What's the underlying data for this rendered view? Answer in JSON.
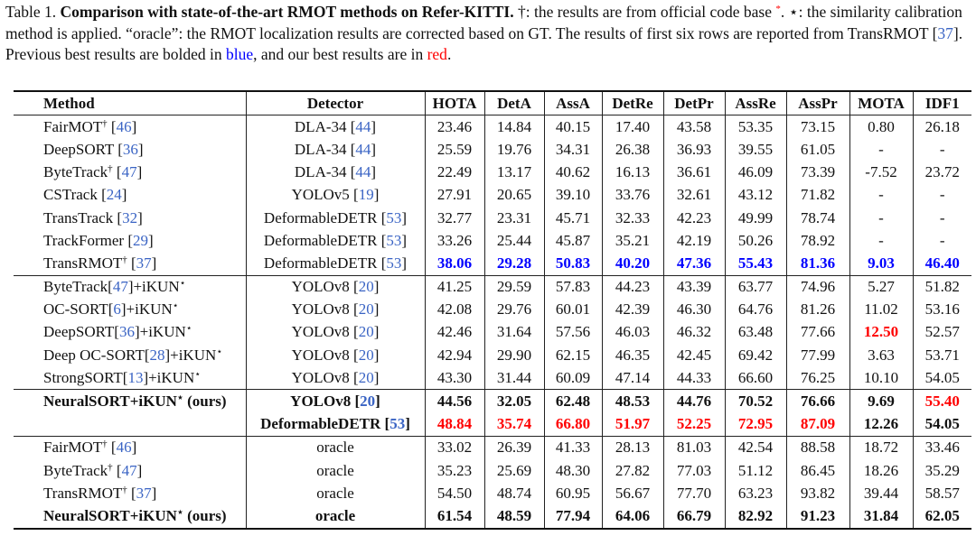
{
  "caption": [
    [
      "Table 1. ",
      ""
    ],
    [
      "Comparison with state-of-the-art RMOT methods on Refer-KITTI.",
      "bold"
    ],
    [
      " †: the results are from official code base ",
      ""
    ],
    [
      "*",
      "sup red"
    ],
    [
      ". ⋆: the similarity calibration method is applied. “oracle”: the RMOT localization results are corrected based on GT. The results of first six rows are reported from TransRMOT [",
      ""
    ],
    [
      "37",
      "cite"
    ],
    [
      "]. Previous best results are bolded in ",
      ""
    ],
    [
      "blue",
      "blue"
    ],
    [
      ", and our best results are in ",
      ""
    ],
    [
      "red",
      "red"
    ],
    [
      ".",
      ""
    ]
  ],
  "table": {
    "header": [
      "Method",
      "Detector",
      "HOTA",
      "DetA",
      "AssA",
      "DetRe",
      "DetPr",
      "AssRe",
      "AssPr",
      "MOTA",
      "IDF1"
    ],
    "groups": [
      {
        "rows": [
          {
            "bold": false,
            "method": [
              [
                "FairMOT",
                ""
              ],
              [
                "†",
                "sup"
              ],
              [
                " [",
                ""
              ],
              [
                "46",
                "cite"
              ],
              [
                "]",
                ""
              ]
            ],
            "detector": [
              [
                "DLA-34 [",
                ""
              ],
              [
                "44",
                "cite"
              ],
              [
                "]",
                ""
              ]
            ],
            "metrics": [
              "23.46",
              "14.84",
              "40.15",
              "17.40",
              "43.58",
              "53.35",
              "73.15",
              "0.80",
              "26.18"
            ]
          },
          {
            "bold": false,
            "method": [
              [
                "DeepSORT [",
                ""
              ],
              [
                "36",
                "cite"
              ],
              [
                "]",
                ""
              ]
            ],
            "detector": [
              [
                "DLA-34 [",
                ""
              ],
              [
                "44",
                "cite"
              ],
              [
                "]",
                ""
              ]
            ],
            "metrics": [
              "25.59",
              "19.76",
              "34.31",
              "26.38",
              "36.93",
              "39.55",
              "61.05",
              "-",
              "-"
            ]
          },
          {
            "bold": false,
            "method": [
              [
                "ByteTrack",
                ""
              ],
              [
                "†",
                "sup"
              ],
              [
                " [",
                ""
              ],
              [
                "47",
                "cite"
              ],
              [
                "]",
                ""
              ]
            ],
            "detector": [
              [
                "DLA-34 [",
                ""
              ],
              [
                "44",
                "cite"
              ],
              [
                "]",
                ""
              ]
            ],
            "metrics": [
              "22.49",
              "13.17",
              "40.62",
              "16.13",
              "36.61",
              "46.09",
              "73.39",
              "-7.52",
              "23.72"
            ]
          },
          {
            "bold": false,
            "method": [
              [
                "CSTrack [",
                ""
              ],
              [
                "24",
                "cite"
              ],
              [
                "]",
                ""
              ]
            ],
            "detector": [
              [
                "YOLOv5 [",
                ""
              ],
              [
                "19",
                "cite"
              ],
              [
                "]",
                ""
              ]
            ],
            "metrics": [
              "27.91",
              "20.65",
              "39.10",
              "33.76",
              "32.61",
              "43.12",
              "71.82",
              "-",
              "-"
            ]
          },
          {
            "bold": false,
            "method": [
              [
                "TransTrack [",
                ""
              ],
              [
                "32",
                "cite"
              ],
              [
                "]",
                ""
              ]
            ],
            "detector": [
              [
                "DeformableDETR [",
                ""
              ],
              [
                "53",
                "cite"
              ],
              [
                "]",
                ""
              ]
            ],
            "metrics": [
              "32.77",
              "23.31",
              "45.71",
              "32.33",
              "42.23",
              "49.99",
              "78.74",
              "-",
              "-"
            ]
          },
          {
            "bold": false,
            "method": [
              [
                "TrackFormer [",
                ""
              ],
              [
                "29",
                "cite"
              ],
              [
                "]",
                ""
              ]
            ],
            "detector": [
              [
                "DeformableDETR [",
                ""
              ],
              [
                "53",
                "cite"
              ],
              [
                "]",
                ""
              ]
            ],
            "metrics": [
              "33.26",
              "25.44",
              "45.87",
              "35.21",
              "42.19",
              "50.26",
              "78.92",
              "-",
              "-"
            ]
          },
          {
            "bold": false,
            "method": [
              [
                "TransRMOT",
                ""
              ],
              [
                "†",
                "sup"
              ],
              [
                " [",
                ""
              ],
              [
                "37",
                "cite"
              ],
              [
                "]",
                ""
              ]
            ],
            "detector": [
              [
                "DeformableDETR [",
                ""
              ],
              [
                "53",
                "cite"
              ],
              [
                "]",
                ""
              ]
            ],
            "metrics": [
              {
                "text": "38.06",
                "color": "blue"
              },
              {
                "text": "29.28",
                "color": "blue"
              },
              {
                "text": "50.83",
                "color": "blue"
              },
              {
                "text": "40.20",
                "color": "blue"
              },
              {
                "text": "47.36",
                "color": "blue"
              },
              {
                "text": "55.43",
                "color": "blue"
              },
              {
                "text": "81.36",
                "color": "blue"
              },
              {
                "text": "9.03",
                "color": "blue"
              },
              {
                "text": "46.40",
                "color": "blue"
              }
            ]
          }
        ]
      },
      {
        "rows": [
          {
            "bold": false,
            "method": [
              [
                "ByteTrack[",
                ""
              ],
              [
                "47",
                "cite"
              ],
              [
                "]+iKUN",
                ""
              ],
              [
                "⋆",
                "sup"
              ]
            ],
            "detector": [
              [
                "YOLOv8 [",
                ""
              ],
              [
                "20",
                "cite"
              ],
              [
                "]",
                ""
              ]
            ],
            "metrics": [
              "41.25",
              "29.59",
              "57.83",
              "44.23",
              "43.39",
              "63.77",
              "74.96",
              "5.27",
              "51.82"
            ]
          },
          {
            "bold": false,
            "method": [
              [
                "OC-SORT[",
                ""
              ],
              [
                "6",
                "cite"
              ],
              [
                "]+iKUN",
                ""
              ],
              [
                "⋆",
                "sup"
              ]
            ],
            "detector": [
              [
                "YOLOv8 [",
                ""
              ],
              [
                "20",
                "cite"
              ],
              [
                "]",
                ""
              ]
            ],
            "metrics": [
              "42.08",
              "29.76",
              "60.01",
              "42.39",
              "46.30",
              "64.76",
              "81.26",
              "11.02",
              "53.16"
            ]
          },
          {
            "bold": false,
            "method": [
              [
                "DeepSORT[",
                ""
              ],
              [
                "36",
                "cite"
              ],
              [
                "]+iKUN",
                ""
              ],
              [
                "⋆",
                "sup"
              ]
            ],
            "detector": [
              [
                "YOLOv8 [",
                ""
              ],
              [
                "20",
                "cite"
              ],
              [
                "]",
                ""
              ]
            ],
            "metrics": [
              "42.46",
              "31.64",
              "57.56",
              "46.03",
              "46.32",
              "63.48",
              "77.66",
              {
                "text": "12.50",
                "color": "red"
              },
              "52.57"
            ]
          },
          {
            "bold": false,
            "method": [
              [
                "Deep OC-SORT[",
                ""
              ],
              [
                "28",
                "cite"
              ],
              [
                "]+iKUN",
                ""
              ],
              [
                "⋆",
                "sup"
              ]
            ],
            "detector": [
              [
                "YOLOv8 [",
                ""
              ],
              [
                "20",
                "cite"
              ],
              [
                "]",
                ""
              ]
            ],
            "metrics": [
              "42.94",
              "29.90",
              "62.15",
              "46.35",
              "42.45",
              "69.42",
              "77.99",
              "3.63",
              "53.71"
            ]
          },
          {
            "bold": false,
            "method": [
              [
                "StrongSORT[",
                ""
              ],
              [
                "13",
                "cite"
              ],
              [
                "]+iKUN",
                ""
              ],
              [
                "⋆",
                "sup"
              ]
            ],
            "detector": [
              [
                "YOLOv8 [",
                ""
              ],
              [
                "20",
                "cite"
              ],
              [
                "]",
                ""
              ]
            ],
            "metrics": [
              "43.30",
              "31.44",
              "60.09",
              "47.14",
              "44.33",
              "66.60",
              "76.25",
              "10.10",
              "54.05"
            ]
          }
        ]
      },
      {
        "rows": [
          {
            "bold": true,
            "method": [
              [
                "NeuralSORT+iKUN",
                ""
              ],
              [
                "⋆",
                "sup"
              ],
              [
                " (ours)",
                ""
              ]
            ],
            "detector": [
              [
                "YOLOv8 [",
                ""
              ],
              [
                "20",
                "cite"
              ],
              [
                "]",
                ""
              ]
            ],
            "metrics": [
              "44.56",
              "32.05",
              "62.48",
              "48.53",
              "44.76",
              "70.52",
              "76.66",
              "9.69",
              {
                "text": "55.40",
                "color": "red"
              }
            ]
          },
          {
            "bold": true,
            "method": [],
            "detector": [
              [
                "DeformableDETR [",
                ""
              ],
              [
                "53",
                "cite"
              ],
              [
                "]",
                ""
              ]
            ],
            "metrics": [
              {
                "text": "48.84",
                "color": "red"
              },
              {
                "text": "35.74",
                "color": "red"
              },
              {
                "text": "66.80",
                "color": "red"
              },
              {
                "text": "51.97",
                "color": "red"
              },
              {
                "text": "52.25",
                "color": "red"
              },
              {
                "text": "72.95",
                "color": "red"
              },
              {
                "text": "87.09",
                "color": "red"
              },
              "12.26",
              "54.05"
            ]
          }
        ]
      },
      {
        "rows": [
          {
            "bold": false,
            "method": [
              [
                "FairMOT",
                ""
              ],
              [
                "†",
                "sup"
              ],
              [
                " [",
                ""
              ],
              [
                "46",
                "cite"
              ],
              [
                "]",
                ""
              ]
            ],
            "detector": [
              [
                "oracle",
                ""
              ]
            ],
            "metrics": [
              "33.02",
              "26.39",
              "41.33",
              "28.13",
              "81.03",
              "42.54",
              "88.58",
              "18.72",
              "33.46"
            ]
          },
          {
            "bold": false,
            "method": [
              [
                "ByteTrack",
                ""
              ],
              [
                "†",
                "sup"
              ],
              [
                " [",
                ""
              ],
              [
                "47",
                "cite"
              ],
              [
                "]",
                ""
              ]
            ],
            "detector": [
              [
                "oracle",
                ""
              ]
            ],
            "metrics": [
              "35.23",
              "25.69",
              "48.30",
              "27.82",
              "77.03",
              "51.12",
              "86.45",
              "18.26",
              "35.29"
            ]
          },
          {
            "bold": false,
            "method": [
              [
                "TransRMOT",
                ""
              ],
              [
                "†",
                "sup"
              ],
              [
                " [",
                ""
              ],
              [
                "37",
                "cite"
              ],
              [
                "]",
                ""
              ]
            ],
            "detector": [
              [
                "oracle",
                ""
              ]
            ],
            "metrics": [
              "54.50",
              "48.74",
              "60.95",
              "56.67",
              "77.70",
              "63.23",
              "93.82",
              "39.44",
              "58.57"
            ]
          },
          {
            "bold": true,
            "method": [
              [
                "NeuralSORT+iKUN",
                ""
              ],
              [
                "⋆",
                "sup"
              ],
              [
                " (ours)",
                ""
              ]
            ],
            "detector": [
              [
                "oracle",
                ""
              ]
            ],
            "metrics": [
              "61.54",
              "48.59",
              "77.94",
              "64.06",
              "66.79",
              "82.92",
              "91.23",
              "31.84",
              "62.05"
            ]
          }
        ]
      }
    ]
  }
}
